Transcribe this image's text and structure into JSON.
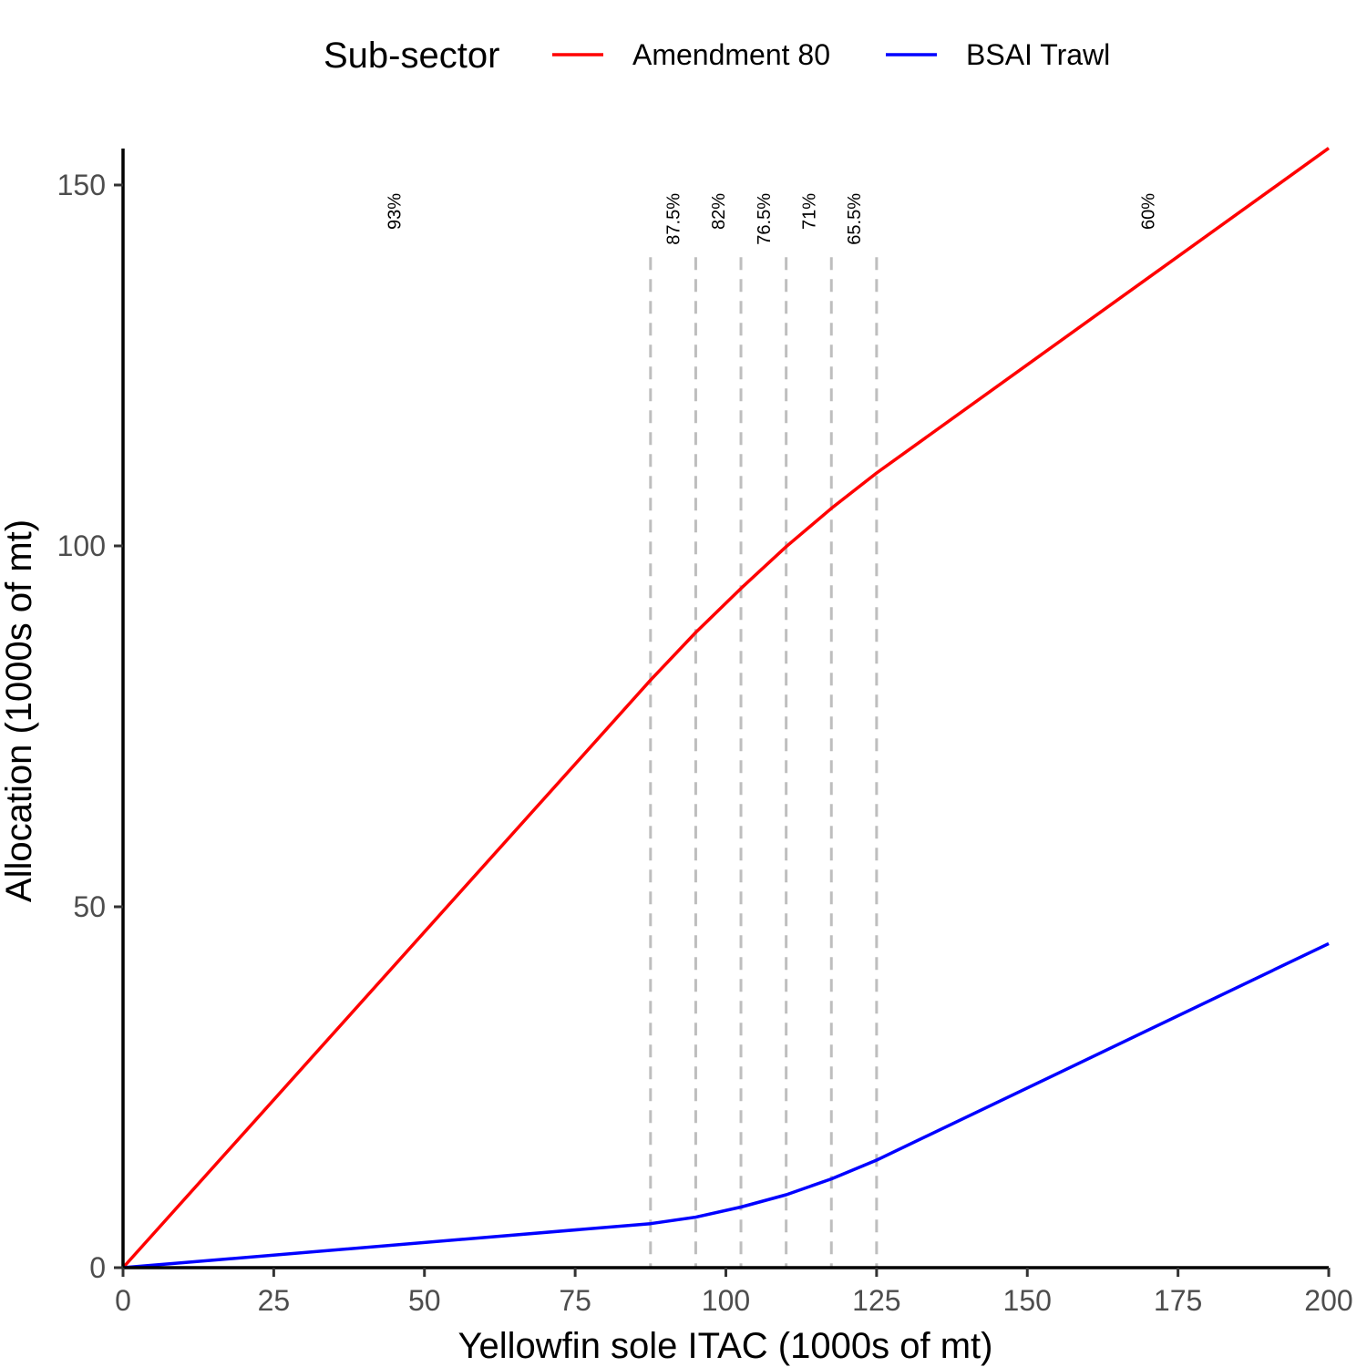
{
  "chart_data": {
    "type": "line",
    "xlabel": "Yellowfin sole ITAC (1000s of mt)",
    "ylabel": "Allocation (1000s of mt)",
    "xlim": [
      0,
      200
    ],
    "ylim": [
      0,
      150
    ],
    "x_ticks": [
      "0",
      "25",
      "50",
      "75",
      "100",
      "125",
      "150",
      "175",
      "200"
    ],
    "y_ticks": [
      "0",
      "50",
      "100",
      "150"
    ],
    "grid": false,
    "legend": {
      "title": "Sub-sector",
      "position": "top"
    },
    "series": [
      {
        "name": "Amendment 80",
        "color": "#ff0000",
        "points": [
          [
            0,
            0
          ],
          [
            87.5,
            81.4
          ],
          [
            95,
            88.0
          ],
          [
            102.5,
            94.1
          ],
          [
            110,
            99.9
          ],
          [
            117.5,
            105.2
          ],
          [
            125,
            110.1
          ],
          [
            200,
            155.1
          ]
        ]
      },
      {
        "name": "BSAI Trawl",
        "color": "#0000ff",
        "points": [
          [
            0,
            0
          ],
          [
            87.5,
            6.1
          ],
          [
            95,
            7.0
          ],
          [
            102.5,
            8.4
          ],
          [
            110,
            10.1
          ],
          [
            117.5,
            12.3
          ],
          [
            125,
            14.9
          ],
          [
            200,
            44.9
          ]
        ]
      }
    ],
    "threshold_lines": {
      "color": "#bebebe",
      "x": [
        87.5,
        95,
        102.5,
        110,
        117.5,
        125
      ],
      "y_top": 140
    },
    "annotations": [
      {
        "text": "93%",
        "x": 45
      },
      {
        "text": "87.5%",
        "x": 91.25
      },
      {
        "text": "82%",
        "x": 98.75
      },
      {
        "text": "76.5%",
        "x": 106.25
      },
      {
        "text": "71%",
        "x": 113.75
      },
      {
        "text": "65.5%",
        "x": 121.25
      },
      {
        "text": "60%",
        "x": 170
      }
    ]
  }
}
